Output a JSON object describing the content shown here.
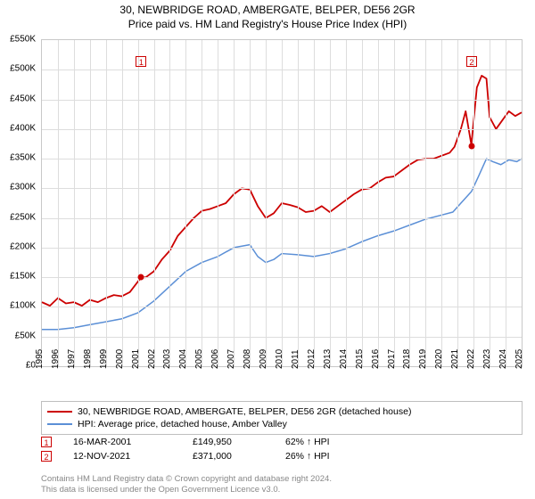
{
  "title_line1": "30, NEWBRIDGE ROAD, AMBERGATE, BELPER, DE56 2GR",
  "title_line2": "Price paid vs. HM Land Registry's House Price Index (HPI)",
  "chart": {
    "type": "line",
    "background_color": "#ffffff",
    "grid_color": "#dddddd",
    "axis_color": "#c8c8c8",
    "label_fontsize": 10,
    "title_fontsize": 12,
    "x": {
      "min": 1995,
      "max": 2025,
      "ticks": [
        1995,
        1996,
        1997,
        1998,
        1999,
        2000,
        2001,
        2002,
        2003,
        2004,
        2005,
        2006,
        2007,
        2008,
        2009,
        2010,
        2011,
        2012,
        2013,
        2014,
        2015,
        2016,
        2017,
        2018,
        2019,
        2020,
        2021,
        2022,
        2023,
        2024,
        2025
      ]
    },
    "y": {
      "min": 0,
      "max": 550000,
      "ticks": [
        0,
        50000,
        100000,
        150000,
        200000,
        250000,
        300000,
        350000,
        400000,
        450000,
        500000,
        550000
      ],
      "tick_labels": [
        "£0",
        "£50K",
        "£100K",
        "£150K",
        "£200K",
        "£250K",
        "£300K",
        "£350K",
        "£400K",
        "£450K",
        "£500K",
        "£550K"
      ]
    },
    "series": [
      {
        "id": "property",
        "label": "30, NEWBRIDGE ROAD, AMBERGATE, BELPER, DE56 2GR (detached house)",
        "color": "#cc0000",
        "line_width": 1.8,
        "points": [
          [
            1995.0,
            108000
          ],
          [
            1995.5,
            102000
          ],
          [
            1996.0,
            115000
          ],
          [
            1996.5,
            106000
          ],
          [
            1997.0,
            108000
          ],
          [
            1997.5,
            102000
          ],
          [
            1998.0,
            112000
          ],
          [
            1998.5,
            108000
          ],
          [
            1999.0,
            115000
          ],
          [
            1999.5,
            120000
          ],
          [
            2000.0,
            118000
          ],
          [
            2000.5,
            125000
          ],
          [
            2001.21,
            149950
          ],
          [
            2001.5,
            150000
          ],
          [
            2002.0,
            160000
          ],
          [
            2002.5,
            180000
          ],
          [
            2003.0,
            195000
          ],
          [
            2003.5,
            220000
          ],
          [
            2004.0,
            235000
          ],
          [
            2004.5,
            250000
          ],
          [
            2005.0,
            262000
          ],
          [
            2005.5,
            265000
          ],
          [
            2006.0,
            270000
          ],
          [
            2006.5,
            275000
          ],
          [
            2007.0,
            290000
          ],
          [
            2007.5,
            300000
          ],
          [
            2008.0,
            298000
          ],
          [
            2008.5,
            270000
          ],
          [
            2009.0,
            250000
          ],
          [
            2009.5,
            258000
          ],
          [
            2010.0,
            275000
          ],
          [
            2010.5,
            272000
          ],
          [
            2011.0,
            268000
          ],
          [
            2011.5,
            260000
          ],
          [
            2012.0,
            262000
          ],
          [
            2012.5,
            270000
          ],
          [
            2013.0,
            260000
          ],
          [
            2013.5,
            270000
          ],
          [
            2014.0,
            280000
          ],
          [
            2014.5,
            290000
          ],
          [
            2015.0,
            298000
          ],
          [
            2015.5,
            300000
          ],
          [
            2016.0,
            310000
          ],
          [
            2016.5,
            318000
          ],
          [
            2017.0,
            320000
          ],
          [
            2017.5,
            330000
          ],
          [
            2018.0,
            340000
          ],
          [
            2018.5,
            348000
          ],
          [
            2019.0,
            350000
          ],
          [
            2019.5,
            350000
          ],
          [
            2020.0,
            355000
          ],
          [
            2020.5,
            360000
          ],
          [
            2020.8,
            370000
          ],
          [
            2021.2,
            400000
          ],
          [
            2021.5,
            430000
          ],
          [
            2021.87,
            371000
          ],
          [
            2021.88,
            380000
          ],
          [
            2022.2,
            470000
          ],
          [
            2022.5,
            490000
          ],
          [
            2022.8,
            485000
          ],
          [
            2023.0,
            420000
          ],
          [
            2023.4,
            400000
          ],
          [
            2023.8,
            415000
          ],
          [
            2024.2,
            430000
          ],
          [
            2024.6,
            422000
          ],
          [
            2025.0,
            428000
          ]
        ]
      },
      {
        "id": "hpi",
        "label": "HPI: Average price, detached house, Amber Valley",
        "color": "#5b8fd6",
        "line_width": 1.5,
        "points": [
          [
            1995.0,
            62000
          ],
          [
            1996.0,
            62000
          ],
          [
            1997.0,
            65000
          ],
          [
            1998.0,
            70000
          ],
          [
            1999.0,
            75000
          ],
          [
            2000.0,
            80000
          ],
          [
            2001.0,
            90000
          ],
          [
            2002.0,
            110000
          ],
          [
            2003.0,
            135000
          ],
          [
            2004.0,
            160000
          ],
          [
            2005.0,
            175000
          ],
          [
            2006.0,
            185000
          ],
          [
            2007.0,
            200000
          ],
          [
            2008.0,
            205000
          ],
          [
            2008.5,
            185000
          ],
          [
            2009.0,
            175000
          ],
          [
            2009.5,
            180000
          ],
          [
            2010.0,
            190000
          ],
          [
            2011.0,
            188000
          ],
          [
            2012.0,
            185000
          ],
          [
            2013.0,
            190000
          ],
          [
            2014.0,
            198000
          ],
          [
            2015.0,
            210000
          ],
          [
            2016.0,
            220000
          ],
          [
            2017.0,
            228000
          ],
          [
            2018.0,
            238000
          ],
          [
            2019.0,
            248000
          ],
          [
            2020.0,
            255000
          ],
          [
            2020.7,
            260000
          ],
          [
            2021.2,
            275000
          ],
          [
            2021.87,
            295000
          ],
          [
            2022.3,
            320000
          ],
          [
            2022.8,
            350000
          ],
          [
            2023.2,
            345000
          ],
          [
            2023.7,
            340000
          ],
          [
            2024.2,
            348000
          ],
          [
            2024.7,
            345000
          ],
          [
            2025.0,
            350000
          ]
        ]
      }
    ],
    "sale_markers": [
      {
        "n": "1",
        "x": 2001.21,
        "y": 149950,
        "annot_y": 38000
      },
      {
        "n": "2",
        "x": 2021.87,
        "y": 371000,
        "annot_y": 38000
      }
    ],
    "marker_color": "#cc0000",
    "annot_border": "#cc0000",
    "annot_text": "#cc0000"
  },
  "legend": {
    "rows": [
      {
        "color": "#cc0000",
        "width": 2,
        "label": "30, NEWBRIDGE ROAD, AMBERGATE, BELPER, DE56 2GR (detached house)"
      },
      {
        "color": "#5b8fd6",
        "width": 1.5,
        "label": "HPI: Average price, detached house, Amber Valley"
      }
    ]
  },
  "events": [
    {
      "n": "1",
      "date": "16-MAR-2001",
      "price": "£149,950",
      "pct": "62% ↑ HPI"
    },
    {
      "n": "2",
      "date": "12-NOV-2021",
      "price": "£371,000",
      "pct": "26% ↑ HPI"
    }
  ],
  "copyright": {
    "line1": "Contains HM Land Registry data © Crown copyright and database right 2024.",
    "line2": "This data is licensed under the Open Government Licence v3.0."
  }
}
